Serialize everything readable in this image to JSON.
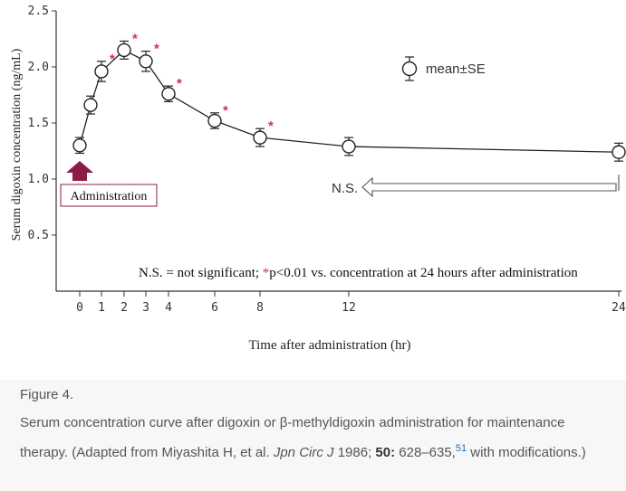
{
  "chart_data": {
    "type": "line",
    "ylabel": "Serum digoxin concentration (ng/mL)",
    "xlabel": "Time after administration (hr)",
    "y_ticks": [
      "2.5",
      "2.0",
      "1.5",
      "1.0",
      "0.5"
    ],
    "x_ticks": [
      "0",
      "1",
      "2",
      "3",
      "4",
      "6",
      "8",
      "12",
      "24"
    ],
    "ylim": [
      0,
      2.5
    ],
    "xlim": [
      0,
      24
    ],
    "x_axis_scale": "piecewise (0–4 hr expanded)",
    "series": [
      {
        "x": [
          0,
          0.5,
          1,
          2,
          3,
          4,
          6,
          8,
          12,
          24
        ],
        "y": [
          1.3,
          1.66,
          1.96,
          2.15,
          2.05,
          1.76,
          1.52,
          1.37,
          1.29,
          1.24
        ],
        "se": [
          0.07,
          0.08,
          0.09,
          0.08,
          0.09,
          0.07,
          0.07,
          0.08,
          0.08,
          0.08
        ],
        "significant": [
          false,
          false,
          true,
          true,
          true,
          true,
          true,
          true,
          false,
          false
        ]
      }
    ],
    "legend": {
      "label": "mean±SE",
      "position": "top-right"
    },
    "administration_label": "Administration",
    "ns_label": "N.S.",
    "annotation": "N.S. = not significant; ",
    "annotation_star": "*",
    "annotation_rest": "p<0.01 vs. concentration at 24 hours after administration",
    "significance_marker": "*",
    "colors": {
      "line": "#222222",
      "star": "#d6267a",
      "arrow": "#8c1b47",
      "axis": "#333333"
    }
  },
  "caption": {
    "label": "Figure 4.",
    "line1": "Serum concentration curve after digoxin or β-methyldigoxin administration for maintenance therapy. (Adapted from Miyashita H, et al. ",
    "journal": "Jpn Circ J",
    "year": " 1986; ",
    "volume": "50:",
    "pages": " 628–635,",
    "ref": "51",
    "tail": " with modifications.)"
  }
}
